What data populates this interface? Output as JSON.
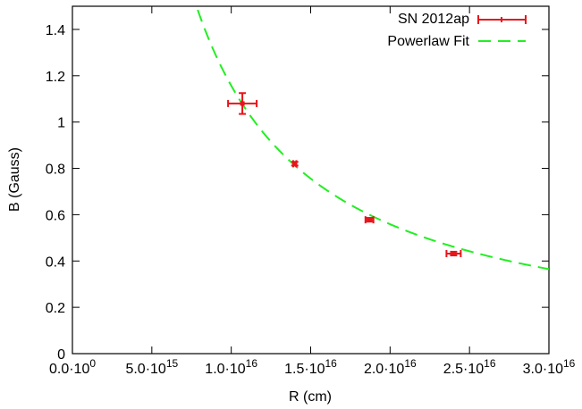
{
  "chart_data": {
    "type": "scatter",
    "xlabel": "R (cm)",
    "ylabel": "B (Gauss)",
    "xlim": [
      0,
      3e+16
    ],
    "ylim": [
      0,
      1.5
    ],
    "x_ticks": [
      {
        "value": 0,
        "mantissa": "0.0",
        "exp": "0"
      },
      {
        "value": 5000000000000000.0,
        "mantissa": "5.0",
        "exp": "15"
      },
      {
        "value": 1e+16,
        "mantissa": "1.0",
        "exp": "16"
      },
      {
        "value": 1.5e+16,
        "mantissa": "1.5",
        "exp": "16"
      },
      {
        "value": 2e+16,
        "mantissa": "2.0",
        "exp": "16"
      },
      {
        "value": 2.5e+16,
        "mantissa": "2.5",
        "exp": "16"
      },
      {
        "value": 3e+16,
        "mantissa": "3.0",
        "exp": "16"
      }
    ],
    "y_ticks": [
      {
        "value": 0,
        "label": "0"
      },
      {
        "value": 0.2,
        "label": "0.2"
      },
      {
        "value": 0.4,
        "label": "0.4"
      },
      {
        "value": 0.6,
        "label": "0.6"
      },
      {
        "value": 0.8,
        "label": "0.8"
      },
      {
        "value": 1.0,
        "label": "1"
      },
      {
        "value": 1.2,
        "label": "1.2"
      },
      {
        "value": 1.4,
        "label": "1.4"
      }
    ],
    "grid": false,
    "legend_position": "top-right",
    "series": [
      {
        "name": "SN 2012ap",
        "style": "points-with-errorbars",
        "color": "#e8141b",
        "points": [
          {
            "x": 1.07e+16,
            "y": 1.08,
            "xerr": 900000000000000.0,
            "yerr": 0.045
          },
          {
            "x": 1.4e+16,
            "y": 0.82,
            "xerr": 100000000000000.0,
            "yerr": 0.008
          },
          {
            "x": 1.87e+16,
            "y": 0.578,
            "xerr": 250000000000000.0,
            "yerr": 0.008
          },
          {
            "x": 2.4e+16,
            "y": 0.432,
            "xerr": 450000000000000.0,
            "yerr": 0.008
          }
        ]
      },
      {
        "name": "Powerlaw Fit",
        "style": "dashed-line",
        "color": "#22ee22",
        "model": "power_law",
        "amplitude_at_1e16": 1.157,
        "index": -1.05
      }
    ]
  }
}
